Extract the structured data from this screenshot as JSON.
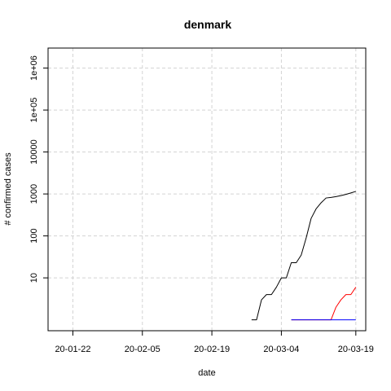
{
  "chart_data": {
    "type": "line",
    "title": "denmark",
    "xlabel": "date",
    "ylabel": "# confirmed cases",
    "y_scale": "log",
    "xlim": [
      "20-01-17",
      "20-03-21"
    ],
    "ylim": [
      0.55,
      3000000
    ],
    "x_ticks": [
      "20-01-22",
      "20-02-05",
      "20-02-19",
      "20-03-04",
      "20-03-19"
    ],
    "y_ticks": [
      10,
      100,
      1000,
      10000,
      100000,
      1000000
    ],
    "y_tick_labels": [
      "10",
      "100",
      "1000",
      "10000",
      "1e+05",
      "1e+06"
    ],
    "grid": true,
    "series": [
      {
        "color": "#000000",
        "points": [
          [
            "20-02-27",
            1
          ],
          [
            "20-02-28",
            1
          ],
          [
            "20-02-29",
            3
          ],
          [
            "20-03-01",
            4
          ],
          [
            "20-03-02",
            4
          ],
          [
            "20-03-03",
            6
          ],
          [
            "20-03-04",
            10
          ],
          [
            "20-03-05",
            10
          ],
          [
            "20-03-06",
            23
          ],
          [
            "20-03-07",
            23
          ],
          [
            "20-03-08",
            35
          ],
          [
            "20-03-09",
            90
          ],
          [
            "20-03-10",
            262
          ],
          [
            "20-03-11",
            442
          ],
          [
            "20-03-12",
            615
          ],
          [
            "20-03-13",
            801
          ],
          [
            "20-03-14",
            827
          ],
          [
            "20-03-15",
            864
          ],
          [
            "20-03-16",
            914
          ],
          [
            "20-03-17",
            977
          ],
          [
            "20-03-18",
            1057
          ],
          [
            "20-03-19",
            1151
          ]
        ]
      },
      {
        "color": "#ff0000",
        "points": [
          [
            "20-03-06",
            0
          ],
          [
            "20-03-07",
            0
          ],
          [
            "20-03-08",
            0
          ],
          [
            "20-03-09",
            0
          ],
          [
            "20-03-10",
            0
          ],
          [
            "20-03-11",
            0
          ],
          [
            "20-03-12",
            0
          ],
          [
            "20-03-13",
            0
          ],
          [
            "20-03-14",
            1
          ],
          [
            "20-03-15",
            2
          ],
          [
            "20-03-16",
            3
          ],
          [
            "20-03-17",
            4
          ],
          [
            "20-03-18",
            4
          ],
          [
            "20-03-19",
            6
          ]
        ]
      },
      {
        "color": "#0000ff",
        "points": [
          [
            "20-03-06",
            0
          ],
          [
            "20-03-07",
            0
          ],
          [
            "20-03-08",
            0
          ],
          [
            "20-03-09",
            0
          ],
          [
            "20-03-10",
            0
          ],
          [
            "20-03-11",
            0
          ],
          [
            "20-03-12",
            0
          ],
          [
            "20-03-13",
            0
          ],
          [
            "20-03-14",
            0
          ],
          [
            "20-03-15",
            0
          ],
          [
            "20-03-16",
            0
          ],
          [
            "20-03-17",
            0
          ],
          [
            "20-03-18",
            0
          ],
          [
            "20-03-19",
            0
          ]
        ]
      }
    ]
  }
}
